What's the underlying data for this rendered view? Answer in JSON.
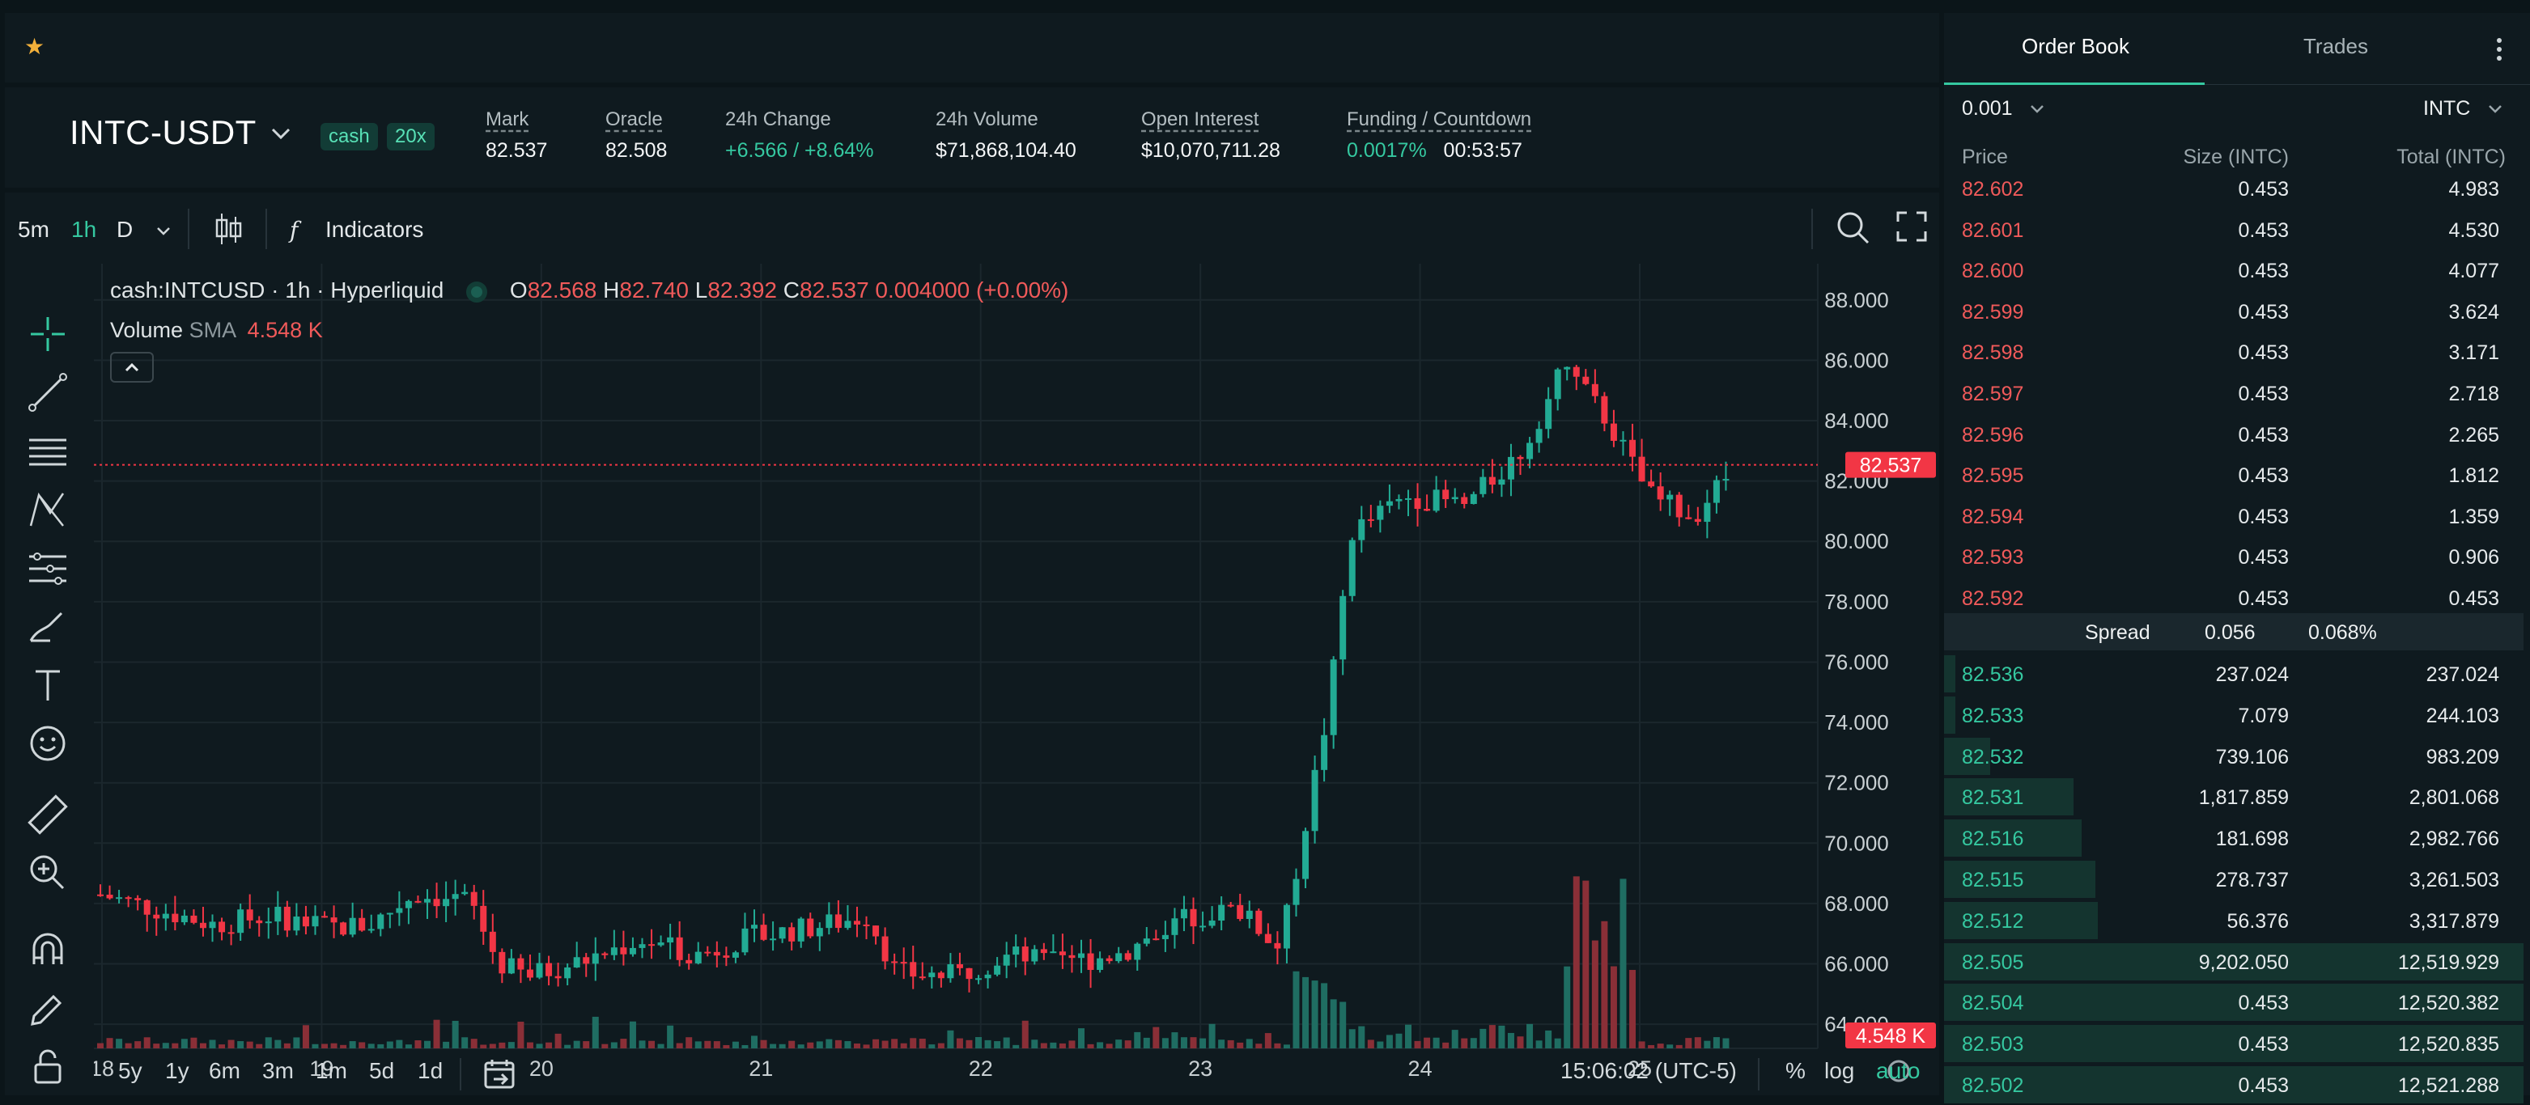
{
  "favorites": {
    "star_icon": "star-icon"
  },
  "header": {
    "pair": "INTC-USDT",
    "tags": [
      "cash",
      "20x"
    ],
    "stats": [
      {
        "label": "Mark",
        "value": "82.537",
        "dashed": true
      },
      {
        "label": "Oracle",
        "value": "82.508",
        "dashed": true
      },
      {
        "label": "24h Change",
        "value": "+6.566 / +8.64%",
        "dashed": false
      },
      {
        "label": "24h Volume",
        "value": "$71,868,104.40",
        "dashed": false
      },
      {
        "label": "Open Interest",
        "value": "$10,070,711.28",
        "dashed": true
      },
      {
        "label": "Funding / Countdown",
        "value": "0.0017%",
        "value2": "00:53:57",
        "dashed": true
      }
    ]
  },
  "toolbar": {
    "intervals": [
      "5m",
      "1h",
      "D"
    ],
    "active_interval": "1h",
    "indicators_label": "Indicators",
    "fx_label": "f"
  },
  "legend": {
    "symbol": "cash:INTCUSD · 1h · Hyperliquid",
    "o_label": "O",
    "o": "82.568",
    "h_label": "H",
    "h": "82.740",
    "l_label": "L",
    "l": "82.392",
    "c_label": "C",
    "c": "82.537",
    "change": "0.004000 (+0.00%)",
    "volume_label": "Volume",
    "sma_label": "SMA",
    "volume_value": "4.548 K"
  },
  "chart_data": {
    "type": "candlestick",
    "x_ticks": [
      "18",
      "19",
      "20",
      "21",
      "22",
      "23",
      "24",
      "25"
    ],
    "y_ticks": [
      "88.000",
      "86.000",
      "84.000",
      "82.000",
      "80.000",
      "78.000",
      "76.000",
      "74.000",
      "72.000",
      "70.000",
      "68.000",
      "66.000",
      "64.000"
    ],
    "ylim": [
      63.2,
      89.2
    ],
    "last_price": "82.537",
    "last_volume": "4.548 K",
    "colors": {
      "up": "#22ab94",
      "down": "#f23645",
      "last_line": "#f23645"
    }
  },
  "bottombar": {
    "ranges": [
      "5y",
      "1y",
      "6m",
      "3m",
      "1m",
      "5d",
      "1d"
    ],
    "time": "15:06:02 (UTC-5)",
    "percent": "%",
    "log": "log",
    "auto": "auto"
  },
  "orderbook": {
    "tabs": [
      "Order Book",
      "Trades"
    ],
    "precision": "0.001",
    "unit": "INTC",
    "headers": [
      "Price",
      "Size (INTC)",
      "Total (INTC)"
    ],
    "asks": [
      {
        "price": "82.602",
        "size": "0.453",
        "total": "4.983"
      },
      {
        "price": "82.601",
        "size": "0.453",
        "total": "4.530"
      },
      {
        "price": "82.600",
        "size": "0.453",
        "total": "4.077"
      },
      {
        "price": "82.599",
        "size": "0.453",
        "total": "3.624"
      },
      {
        "price": "82.598",
        "size": "0.453",
        "total": "3.171"
      },
      {
        "price": "82.597",
        "size": "0.453",
        "total": "2.718"
      },
      {
        "price": "82.596",
        "size": "0.453",
        "total": "2.265"
      },
      {
        "price": "82.595",
        "size": "0.453",
        "total": "1.812"
      },
      {
        "price": "82.594",
        "size": "0.453",
        "total": "1.359"
      },
      {
        "price": "82.593",
        "size": "0.453",
        "total": "0.906"
      },
      {
        "price": "82.592",
        "size": "0.453",
        "total": "0.453"
      }
    ],
    "spread": {
      "label": "Spread",
      "value": "0.056",
      "percent": "0.068%"
    },
    "bids": [
      {
        "price": "82.536",
        "size": "237.024",
        "total": "237.024",
        "depth": 0.019
      },
      {
        "price": "82.533",
        "size": "7.079",
        "total": "244.103",
        "depth": 0.02
      },
      {
        "price": "82.532",
        "size": "739.106",
        "total": "983.209",
        "depth": 0.079
      },
      {
        "price": "82.531",
        "size": "1,817.859",
        "total": "2,801.068",
        "depth": 0.224
      },
      {
        "price": "82.516",
        "size": "181.698",
        "total": "2,982.766",
        "depth": 0.238
      },
      {
        "price": "82.515",
        "size": "278.737",
        "total": "3,261.503",
        "depth": 0.261
      },
      {
        "price": "82.512",
        "size": "56.376",
        "total": "3,317.879",
        "depth": 0.265
      },
      {
        "price": "82.505",
        "size": "9,202.050",
        "total": "12,519.929",
        "depth": 1.0
      },
      {
        "price": "82.504",
        "size": "0.453",
        "total": "12,520.382",
        "depth": 1.0
      },
      {
        "price": "82.503",
        "size": "0.453",
        "total": "12,520.835",
        "depth": 1.0
      },
      {
        "price": "82.502",
        "size": "0.453",
        "total": "12,521.288",
        "depth": 1.0
      }
    ]
  }
}
